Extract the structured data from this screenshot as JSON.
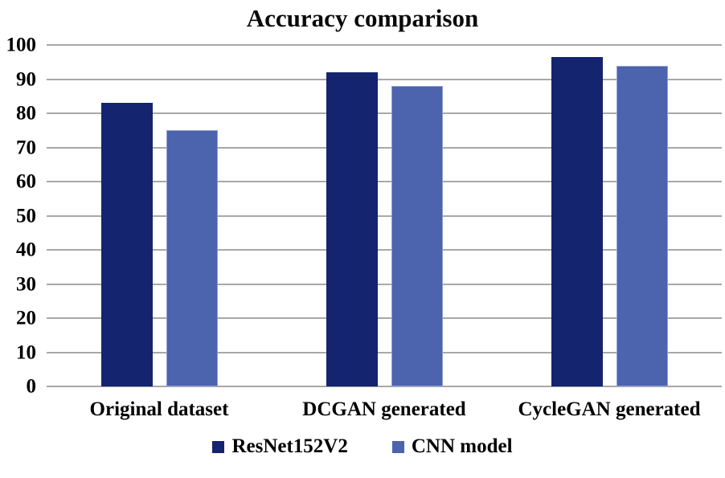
{
  "chart_data": {
    "type": "bar",
    "title": "Accuracy comparison",
    "categories": [
      "Original dataset",
      "DCGAN generated",
      "CycleGAN generated"
    ],
    "series": [
      {
        "name": "ResNet152V2",
        "color": "#14246e",
        "values": [
          83,
          92,
          96.5
        ]
      },
      {
        "name": "CNN model",
        "color": "#4c63ae",
        "border_color": "#8fa0d2",
        "values": [
          75,
          88,
          94
        ]
      }
    ],
    "xlabel": "",
    "ylabel": "",
    "ylim": [
      0,
      100
    ],
    "y_ticks": [
      "100",
      "90",
      "80",
      "70",
      "60",
      "50",
      "40",
      "30",
      "20",
      "10",
      "0"
    ],
    "grid": true,
    "gridline_color": "#a8a8a8",
    "legend_position": "bottom",
    "text_color": "#0a0a0a",
    "background_color": "#ffffff"
  }
}
